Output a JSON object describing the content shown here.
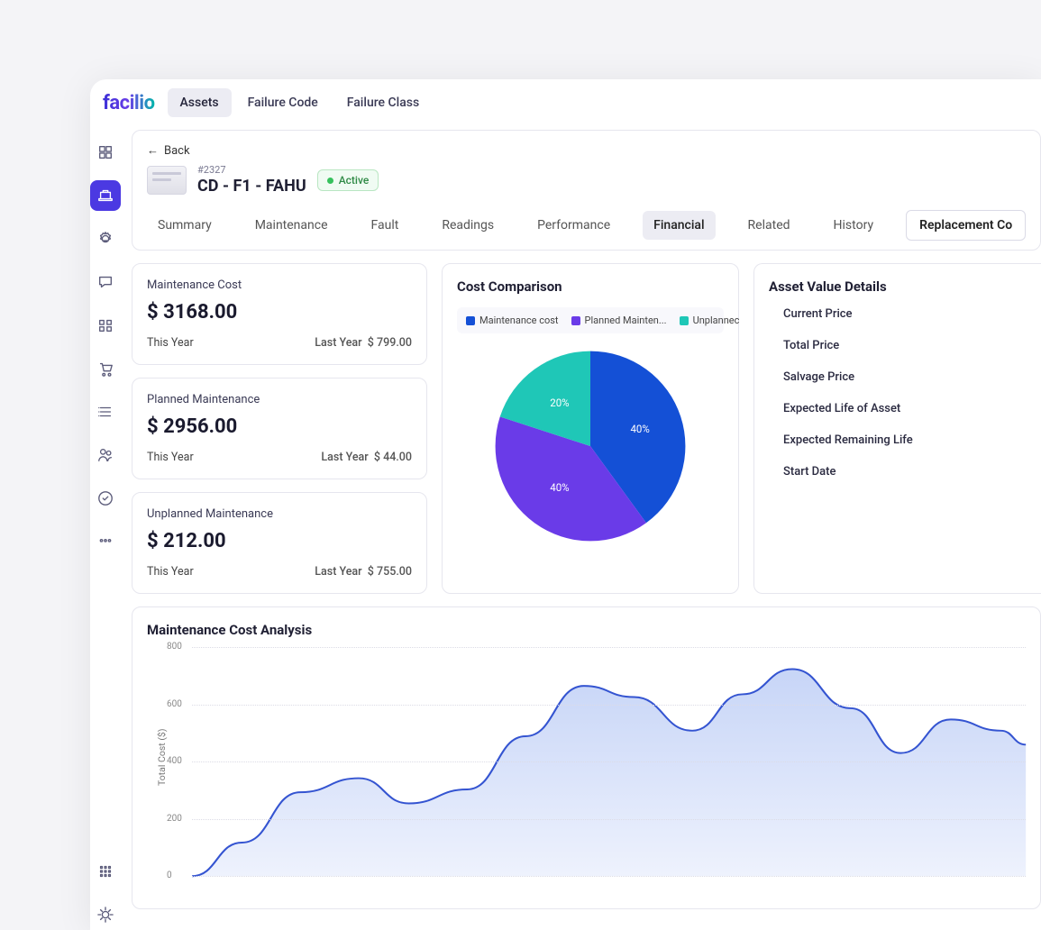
{
  "brand": "facilio",
  "topnav": {
    "tabs": [
      "Assets",
      "Failure Code",
      "Failure Class"
    ],
    "active_index": 0
  },
  "side_rail": {
    "items": [
      {
        "name": "dashboard-icon"
      },
      {
        "name": "assets-icon"
      },
      {
        "name": "settings-gear-icon"
      },
      {
        "name": "chat-icon"
      },
      {
        "name": "apps-icon"
      },
      {
        "name": "cart-icon"
      },
      {
        "name": "list-icon"
      },
      {
        "name": "users-icon"
      },
      {
        "name": "approval-icon"
      },
      {
        "name": "more-icon"
      }
    ],
    "active_index": 1,
    "bottom_items": [
      {
        "name": "grid-icon"
      },
      {
        "name": "prefs-icon"
      }
    ]
  },
  "header": {
    "back_label": "Back",
    "asset_id": "#2327",
    "asset_name": "CD - F1 - FAHU",
    "status": "Active"
  },
  "subtabs": {
    "items": [
      "Summary",
      "Maintenance",
      "Fault",
      "Readings",
      "Performance",
      "Financial",
      "Related",
      "History"
    ],
    "active_index": 5,
    "replacement_button": "Replacement Co"
  },
  "stats": [
    {
      "label": "Maintenance Cost",
      "value": "$ 3168.00",
      "this": "This Year",
      "last_label": "Last Year",
      "last_value": "$ 799.00"
    },
    {
      "label": "Planned Maintenance",
      "value": "$ 2956.00",
      "this": "This Year",
      "last_label": "Last Year",
      "last_value": "$ 44.00"
    },
    {
      "label": "Unplanned Maintenance",
      "value": "$ 212.00",
      "this": "This Year",
      "last_label": "Last Year",
      "last_value": "$ 755.00"
    }
  ],
  "pie": {
    "title": "Cost Comparison",
    "type": "pie",
    "legend": [
      {
        "label": "Maintenance cost",
        "color": "#1450d6"
      },
      {
        "label": "Planned Mainten...",
        "color": "#6a3be8"
      },
      {
        "label": "Unplannec",
        "color": "#1fc7b7"
      }
    ],
    "slices": [
      {
        "label": "40%",
        "value": 40,
        "color": "#1450d6"
      },
      {
        "label": "40%",
        "value": 40,
        "color": "#6a3be8"
      },
      {
        "label": "20%",
        "value": 20,
        "color": "#1fc7b7"
      }
    ],
    "diameter": 230,
    "label_color": "#ffffff",
    "label_fontsize": 12
  },
  "asset_value_details": {
    "title": "Asset Value Details",
    "rows": [
      "Current Price",
      "Total Price",
      "Salvage Price",
      "Expected Life of Asset",
      "Expected Remaining Life",
      "Start Date"
    ]
  },
  "line_chart": {
    "title": "Maintenance Cost Analysis",
    "type": "area",
    "ylabel": "Total Cost ($)",
    "ylabel_fontsize": 10.5,
    "ylim": [
      0,
      800
    ],
    "ytick_step": 200,
    "yticks": [
      0,
      200,
      400,
      600,
      800
    ],
    "grid_color": "#dcdce6",
    "stroke_color": "#3454d1",
    "stroke_width": 2,
    "fill_color_top": "#c7d5f7",
    "fill_color_bottom": "#eef2fd",
    "background_color": "#ffffff",
    "points": [
      {
        "x": 0,
        "y": 0
      },
      {
        "x": 0.06,
        "y": 120
      },
      {
        "x": 0.13,
        "y": 300
      },
      {
        "x": 0.2,
        "y": 350
      },
      {
        "x": 0.26,
        "y": 260
      },
      {
        "x": 0.33,
        "y": 310
      },
      {
        "x": 0.4,
        "y": 500
      },
      {
        "x": 0.47,
        "y": 680
      },
      {
        "x": 0.53,
        "y": 640
      },
      {
        "x": 0.6,
        "y": 520
      },
      {
        "x": 0.66,
        "y": 650
      },
      {
        "x": 0.72,
        "y": 740
      },
      {
        "x": 0.79,
        "y": 600
      },
      {
        "x": 0.85,
        "y": 440
      },
      {
        "x": 0.91,
        "y": 560
      },
      {
        "x": 0.97,
        "y": 520
      },
      {
        "x": 1.0,
        "y": 470
      }
    ]
  }
}
